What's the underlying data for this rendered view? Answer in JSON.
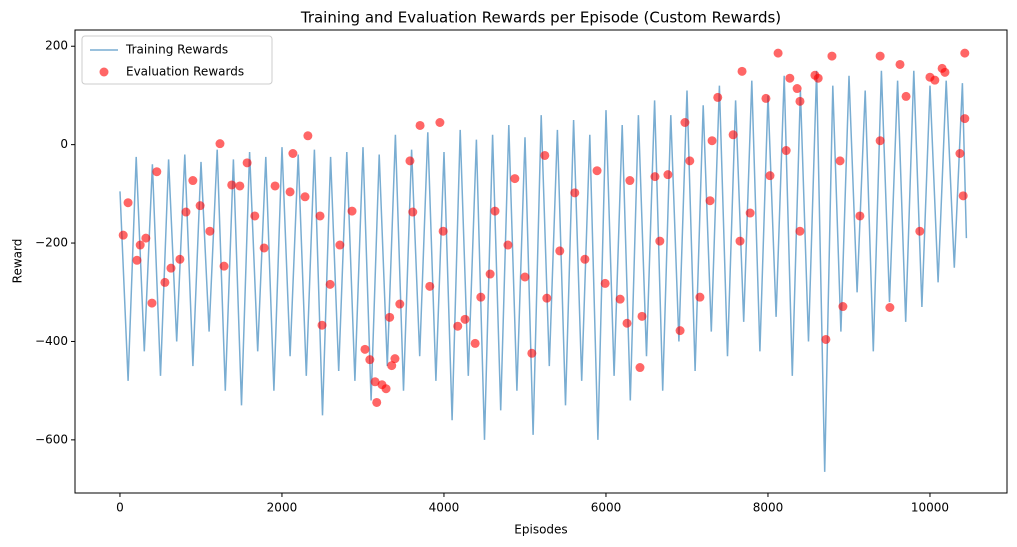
{
  "chart_data": {
    "type": "line",
    "title": "Training and Evaluation Rewards per Episode (Custom Rewards)",
    "xlabel": "Episodes",
    "ylabel": "Reward",
    "xlim": [
      -555,
      10951
    ],
    "ylim": [
      -708,
      233
    ],
    "xticks": [
      0,
      2000,
      4000,
      6000,
      8000,
      10000
    ],
    "yticks": [
      {
        "value": -600,
        "label": "−600"
      },
      {
        "value": -400,
        "label": "−400"
      },
      {
        "value": -200,
        "label": "−200"
      },
      0,
      200
    ],
    "legend": "upper left",
    "series": [
      {
        "name": "Training Rewards",
        "type": "line",
        "color": "#1f77b4",
        "opacity": 0.6,
        "x": [
          0,
          100,
          200,
          300,
          400,
          500,
          600,
          700,
          800,
          900,
          1000,
          1100,
          1200,
          1300,
          1400,
          1500,
          1600,
          1700,
          1800,
          1900,
          2000,
          2100,
          2200,
          2300,
          2400,
          2500,
          2600,
          2700,
          2800,
          2900,
          3000,
          3100,
          3200,
          3300,
          3400,
          3500,
          3600,
          3700,
          3800,
          3900,
          4000,
          4100,
          4200,
          4300,
          4400,
          4500,
          4600,
          4700,
          4800,
          4900,
          5000,
          5100,
          5200,
          5300,
          5400,
          5500,
          5600,
          5700,
          5800,
          5900,
          6000,
          6100,
          6200,
          6300,
          6400,
          6500,
          6600,
          6700,
          6800,
          6900,
          7000,
          7100,
          7200,
          7300,
          7400,
          7500,
          7600,
          7700,
          7800,
          7900,
          8000,
          8100,
          8200,
          8300,
          8400,
          8500,
          8600,
          8700,
          8800,
          8900,
          9000,
          9100,
          9200,
          9300,
          9400,
          9500,
          9600,
          9700,
          9800,
          9900,
          10000,
          10100,
          10200,
          10300,
          10400,
          10450
        ],
        "values": [
          -95,
          -480,
          -25,
          -420,
          -40,
          -470,
          -30,
          -400,
          -20,
          -450,
          -35,
          -380,
          -10,
          -500,
          -30,
          -530,
          -15,
          -420,
          -25,
          -500,
          -5,
          -430,
          -20,
          -470,
          -10,
          -550,
          -25,
          -460,
          -15,
          -480,
          -5,
          -520,
          -20,
          -450,
          20,
          -500,
          -10,
          -430,
          25,
          -480,
          -15,
          -560,
          30,
          -470,
          10,
          -600,
          20,
          -540,
          40,
          -500,
          15,
          -590,
          60,
          -450,
          30,
          -530,
          50,
          -480,
          20,
          -600,
          70,
          -470,
          40,
          -520,
          60,
          -430,
          90,
          -500,
          60,
          -400,
          110,
          -460,
          80,
          -380,
          120,
          -430,
          90,
          -360,
          130,
          -420,
          100,
          -350,
          140,
          -470,
          110,
          -400,
          150,
          -665,
          120,
          -380,
          140,
          -300,
          110,
          -420,
          150,
          -320,
          130,
          -360,
          150,
          -330,
          120,
          -280,
          130,
          -250,
          125,
          -190
        ]
      },
      {
        "name": "Evaluation Rewards",
        "type": "scatter",
        "color": "#ff0000",
        "opacity": 0.6,
        "x": [
          40,
          100,
          210,
          250,
          320,
          395,
          455,
          555,
          630,
          740,
          815,
          900,
          990,
          1110,
          1235,
          1285,
          1380,
          1480,
          1570,
          1665,
          1780,
          1915,
          2100,
          2135,
          2285,
          2320,
          2470,
          2495,
          2595,
          2715,
          2865,
          3025,
          3085,
          3150,
          3170,
          3235,
          3285,
          3330,
          3355,
          3395,
          3455,
          3580,
          3615,
          3705,
          3825,
          3950,
          3990,
          4170,
          4260,
          4385,
          4455,
          4570,
          4630,
          4790,
          4875,
          5000,
          5085,
          5245,
          5270,
          5430,
          5615,
          5740,
          5890,
          5990,
          6175,
          6260,
          6295,
          6420,
          6445,
          6605,
          6665,
          6765,
          6915,
          6975,
          7035,
          7160,
          7285,
          7310,
          7380,
          7570,
          7655,
          7680,
          7780,
          7975,
          8025,
          8125,
          8225,
          8270,
          8360,
          8395,
          8395,
          8580,
          8620,
          8715,
          8790,
          8890,
          8925,
          9135,
          9385,
          9385,
          9505,
          9630,
          9705,
          9875,
          10000,
          10060,
          10150,
          10185,
          10370,
          10410,
          10430,
          10430
        ],
        "values": [
          -184,
          -118,
          -235,
          -204,
          -190,
          -322,
          -55,
          -280,
          -251,
          -233,
          -137,
          -73,
          -124,
          -176,
          2,
          -247,
          -82,
          -84,
          -37,
          -145,
          -210,
          -84,
          -96,
          -18,
          -106,
          18,
          -145,
          -367,
          -284,
          -204,
          -135,
          -416,
          -437,
          -482,
          -524,
          -488,
          -496,
          -351,
          -449,
          -435,
          -324,
          -33,
          -137,
          39,
          -288,
          45,
          -176,
          -369,
          -355,
          -404,
          -310,
          -263,
          -135,
          -204,
          -69,
          -269,
          -424,
          -22,
          -312,
          -216,
          -98,
          -233,
          -53,
          -282,
          -314,
          -363,
          -73,
          -453,
          -349,
          -65,
          -196,
          -61,
          -378,
          45,
          -33,
          -310,
          -114,
          8,
          96,
          20,
          -196,
          149,
          -139,
          94,
          -63,
          186,
          -12,
          135,
          114,
          88,
          -176,
          141,
          135,
          -396,
          180,
          -33,
          -329,
          -145,
          180,
          8,
          -331,
          163,
          98,
          -176,
          137,
          131,
          155,
          147,
          -18,
          -104,
          186,
          53
        ]
      }
    ]
  }
}
